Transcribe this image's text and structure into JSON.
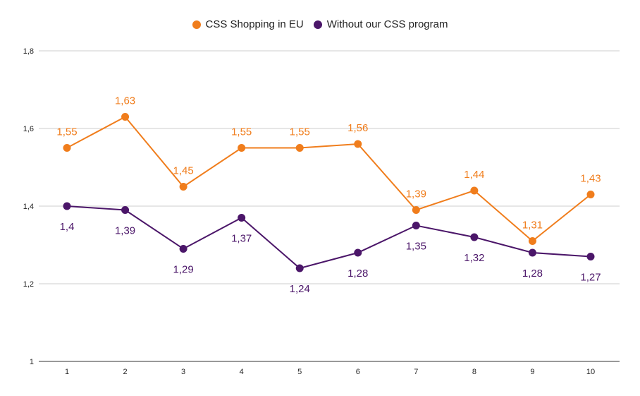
{
  "chart_data": {
    "type": "line",
    "title": "",
    "xlabel": "",
    "ylabel": "",
    "x": [
      "1",
      "2",
      "3",
      "4",
      "5",
      "6",
      "7",
      "8",
      "9",
      "10"
    ],
    "ylim": [
      1.0,
      1.8
    ],
    "yticks": [
      1,
      1.2,
      1.4,
      1.6,
      1.8
    ],
    "ytick_labels": [
      "1",
      "1,2",
      "1,4",
      "1,6",
      "1,8"
    ],
    "grid": true,
    "legend_position": "top-center",
    "series": [
      {
        "name": "CSS Shopping in EU",
        "color": "#f07d1c",
        "values": [
          1.55,
          1.63,
          1.45,
          1.55,
          1.55,
          1.56,
          1.39,
          1.44,
          1.31,
          1.43
        ],
        "labels": [
          "1,55",
          "1,63",
          "1,45",
          "1,55",
          "1,55",
          "1,56",
          "1,39",
          "1,44",
          "1,31",
          "1,43"
        ],
        "label_position": "above"
      },
      {
        "name": "Without our CSS program",
        "color": "#4b1669",
        "values": [
          1.4,
          1.39,
          1.29,
          1.37,
          1.24,
          1.28,
          1.35,
          1.32,
          1.28,
          1.27
        ],
        "labels": [
          "1,4",
          "1,39",
          "1,29",
          "1,37",
          "1,24",
          "1,28",
          "1,35",
          "1,32",
          "1,28",
          "1,27"
        ],
        "label_position": "below"
      }
    ]
  }
}
